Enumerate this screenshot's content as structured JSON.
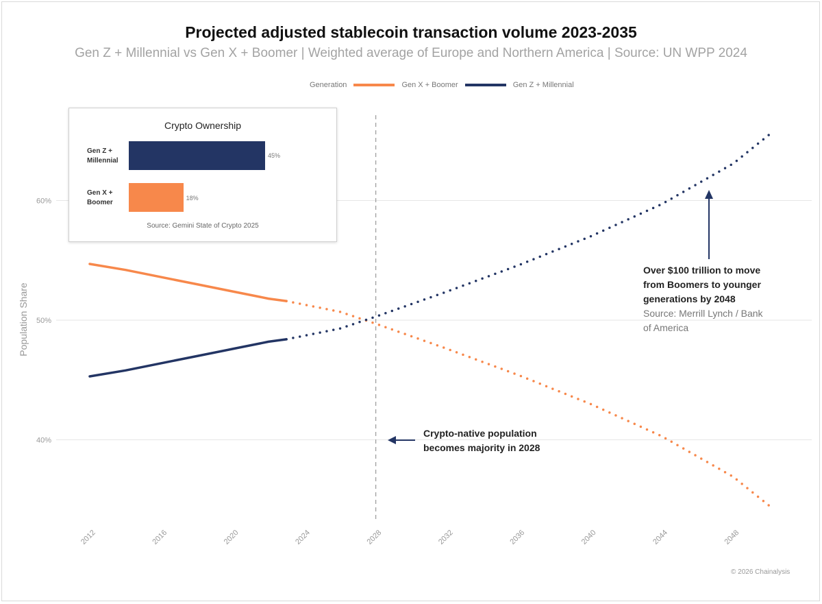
{
  "chart_data": {
    "type": "line",
    "title": "Projected adjusted stablecoin transaction volume 2023-2035",
    "subtitle": "Gen Z + Millennial vs Gen X + Boomer | Weighted average of Europe and Northern America | Source: UN WPP 2024",
    "ylabel": "Population Share",
    "xlabel": "",
    "legend_title": "Generation",
    "legend_position": "top",
    "grid": "horizontal",
    "xlim": [
      2012,
      2050
    ],
    "ylim": [
      32,
      70
    ],
    "x_ticks": [
      "2012",
      "2016",
      "2020",
      "2024",
      "2028",
      "2032",
      "2036",
      "2040",
      "2044",
      "2048"
    ],
    "y_ticks": [
      "40%",
      "50%",
      "60%"
    ],
    "y_tick_values": [
      40,
      50,
      60
    ],
    "projection_start": 2023,
    "vertical_marker": 2028,
    "series": [
      {
        "name": "Gen X + Boomer",
        "color": "#f7884b",
        "x": [
          2012,
          2014,
          2016,
          2018,
          2020,
          2022,
          2023,
          2026,
          2028,
          2032,
          2036,
          2040,
          2044,
          2048,
          2050
        ],
        "y": [
          54.7,
          54.2,
          53.6,
          53.0,
          52.4,
          51.8,
          51.6,
          50.7,
          49.7,
          47.6,
          45.4,
          43.0,
          40.3,
          36.9,
          34.5
        ]
      },
      {
        "name": "Gen Z + Millennial",
        "color": "#233564",
        "x": [
          2012,
          2014,
          2016,
          2018,
          2020,
          2022,
          2023,
          2026,
          2028,
          2032,
          2036,
          2040,
          2044,
          2048,
          2050
        ],
        "y": [
          45.3,
          45.8,
          46.4,
          47.0,
          47.6,
          48.2,
          48.4,
          49.3,
          50.3,
          52.4,
          54.6,
          57.0,
          59.7,
          63.1,
          65.5
        ]
      }
    ]
  },
  "inset": {
    "title": "Crypto Ownership",
    "source": "Source: Gemini State of Crypto 2025",
    "bars": [
      {
        "label": "Gen Z +\nMillennial",
        "value": 45,
        "value_label": "45%",
        "color": "#233564"
      },
      {
        "label": "Gen X +\nBoomer",
        "value": 18,
        "value_label": "18%",
        "color": "#f7884b"
      }
    ]
  },
  "annotations": {
    "majority_line1": "Crypto-native population",
    "majority_line2": "becomes majority in 2028",
    "transfer_line1": "Over $100 trillion to move",
    "transfer_line2": "from Boomers to younger",
    "transfer_line3": "generations by 2048",
    "transfer_source1": "Source: Merrill Lynch / Bank",
    "transfer_source2": "of America"
  },
  "footer": {
    "copyright": "© 2026 Chainalysis"
  }
}
